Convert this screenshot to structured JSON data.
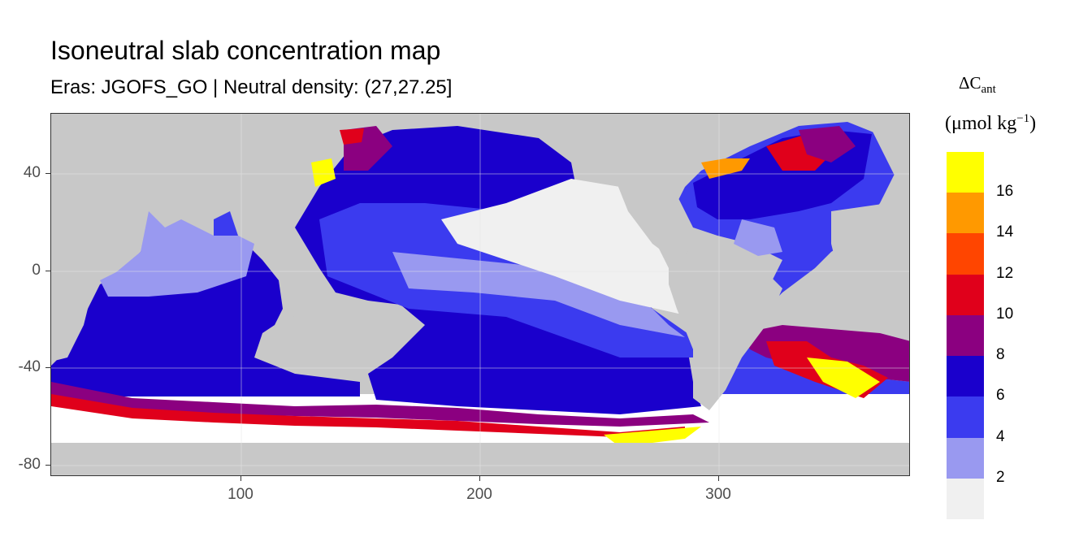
{
  "title": "Isoneutral slab concentration map",
  "subtitle": "Eras: JGOFS_GO | Neutral density: (27,27.25]",
  "axes": {
    "x_ticks": [
      "100",
      "200",
      "300"
    ],
    "y_ticks": [
      "40",
      "0",
      "-40",
      "-80"
    ],
    "x_range": [
      20,
      380
    ],
    "y_range": [
      -85,
      65
    ]
  },
  "legend": {
    "title_symbol": "ΔC",
    "title_subscript": "ant",
    "unit_text": "(μmol kg",
    "unit_exponent": "−1",
    "unit_close": ")",
    "labels": [
      "16",
      "14",
      "12",
      "10",
      "8",
      "6",
      "4",
      "2"
    ],
    "colors": [
      "#ffff00",
      "#ff9900",
      "#ff4500",
      "#e0001b",
      "#8b0080",
      "#1a00cc",
      "#3b3bef",
      "#9999f0",
      "#f0f0f0"
    ]
  },
  "map": {
    "land_color": "#c8c8c8",
    "ocean_white": "#ffffff"
  }
}
